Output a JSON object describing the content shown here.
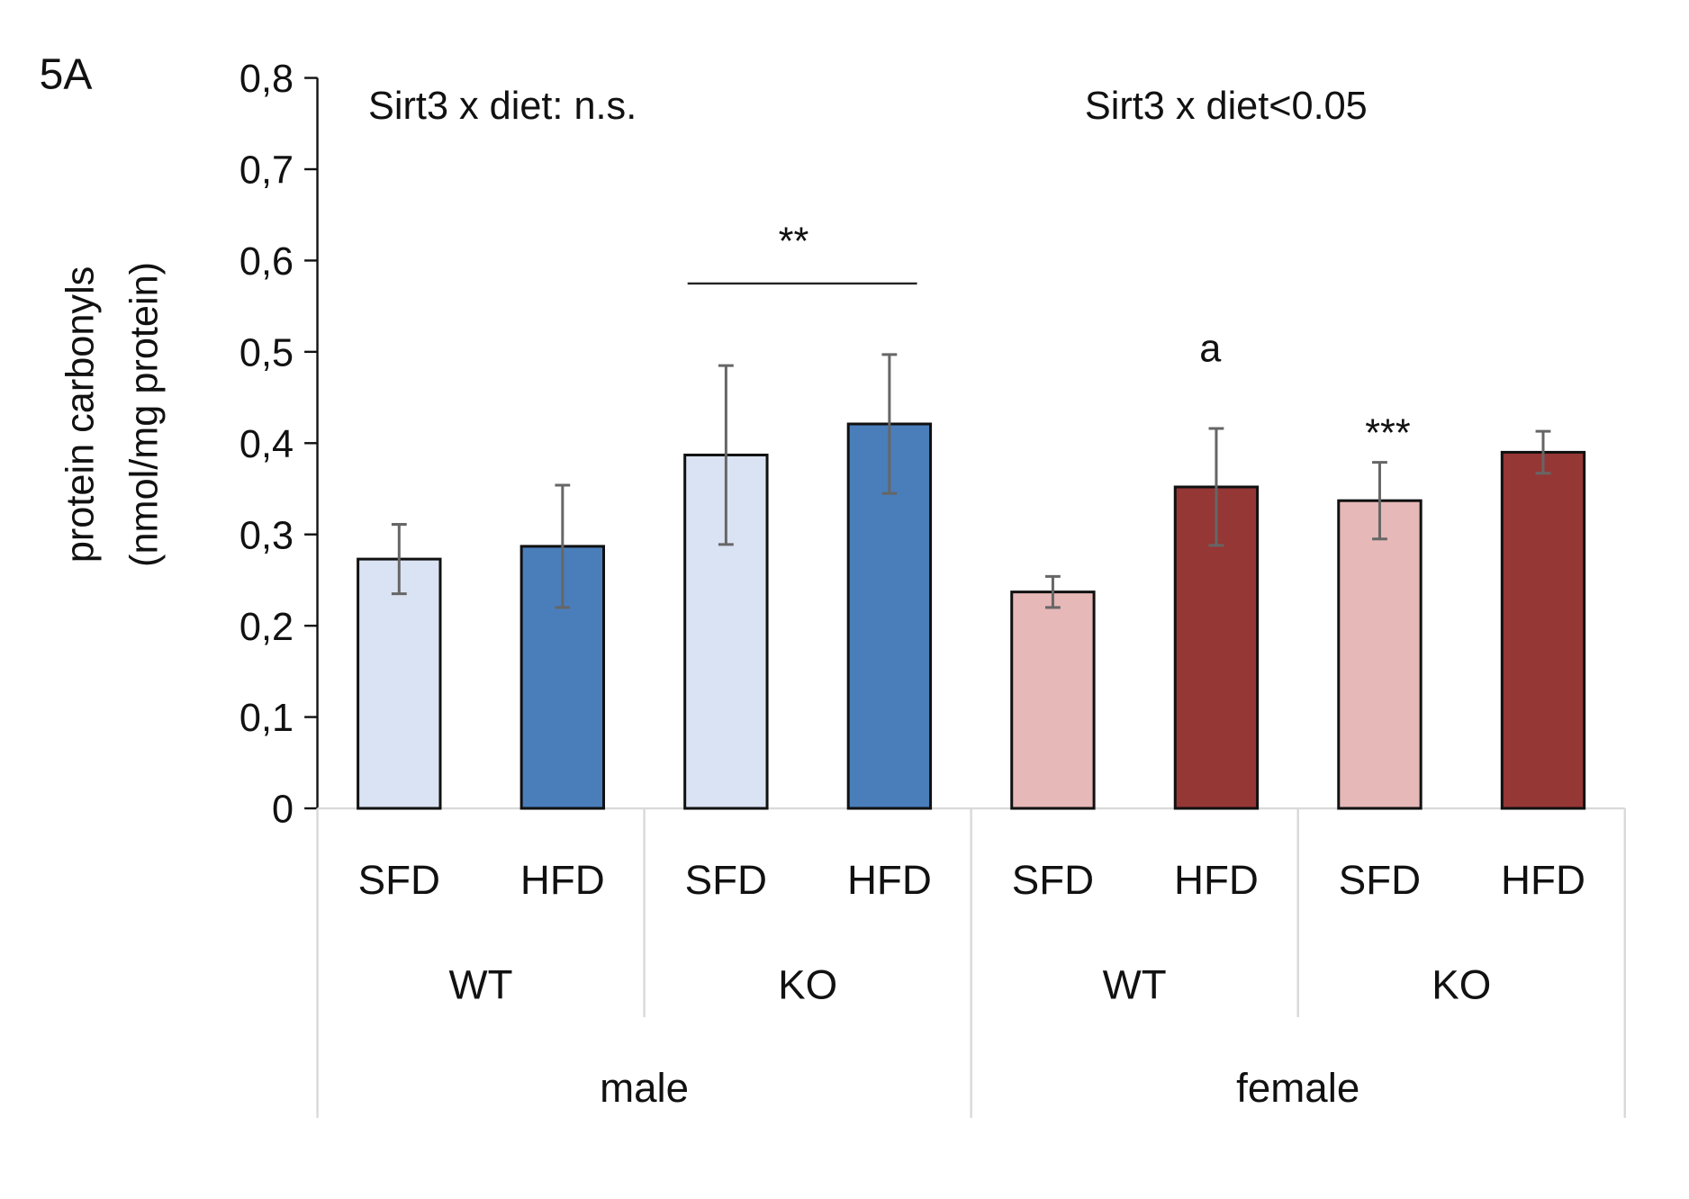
{
  "chart_data": {
    "type": "bar",
    "panel_label": "5A",
    "ylabel_line1": "protein carbonyls",
    "ylabel_line2": "(nmol/mg protein)",
    "ylim": [
      0,
      0.8
    ],
    "yticks": [
      0,
      0.1,
      0.2,
      0.3,
      0.4,
      0.5,
      0.6,
      0.7,
      0.8
    ],
    "ytick_labels": [
      "0",
      "0,1",
      "0,2",
      "0,3",
      "0,4",
      "0,5",
      "0,6",
      "0,7",
      "0,8"
    ],
    "grid": false,
    "categories": [
      "SFD",
      "HFD",
      "SFD",
      "HFD",
      "SFD",
      "HFD",
      "SFD",
      "HFD"
    ],
    "genotype_labels": [
      "WT",
      "KO",
      "WT",
      "KO"
    ],
    "sex_labels": [
      "male",
      "female"
    ],
    "values": [
      0.273,
      0.287,
      0.387,
      0.421,
      0.237,
      0.352,
      0.337,
      0.39
    ],
    "errors": [
      0.038,
      0.067,
      0.098,
      0.076,
      0.017,
      0.064,
      0.042,
      0.023
    ],
    "bar_colors": [
      "#dae3f3",
      "#4a7ebb",
      "#dae3f3",
      "#4a7ebb",
      "#e6b8b7",
      "#953735",
      "#e6b8b7",
      "#953735"
    ],
    "annotations": {
      "male_interaction": "Sirt3 x diet: n.s.",
      "female_interaction": "Sirt3 x diet<0.05",
      "ko_male_bracket": "**",
      "female_wt_hfd": "a",
      "female_ko_sfd": "***"
    }
  }
}
